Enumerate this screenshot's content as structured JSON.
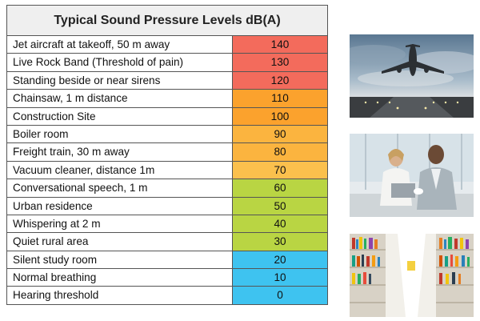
{
  "table": {
    "title": "Typical Sound Pressure Levels dB(A)",
    "rows": [
      {
        "label": "Jet aircraft at takeoff, 50 m away",
        "value": "140",
        "color": "#f36b5c"
      },
      {
        "label": "Live Rock Band (Threshold of pain)",
        "value": "130",
        "color": "#f36b5c"
      },
      {
        "label": "Standing beside or near sirens",
        "value": "120",
        "color": "#f36b5c"
      },
      {
        "label": "Chainsaw, 1 m distance",
        "value": "110",
        "color": "#fba22d"
      },
      {
        "label": "Construction Site",
        "value": "100",
        "color": "#fba22d"
      },
      {
        "label": "Boiler room",
        "value": "90",
        "color": "#fbb43f"
      },
      {
        "label": "Freight train, 30 m away",
        "value": "80",
        "color": "#fbb43f"
      },
      {
        "label": "Vacuum cleaner, distance 1m",
        "value": "70",
        "color": "#fbc04d"
      },
      {
        "label": "Conversational speech, 1 m",
        "value": "60",
        "color": "#b9d543"
      },
      {
        "label": "Urban residence",
        "value": "50",
        "color": "#b9d543"
      },
      {
        "label": "Whispering at 2 m",
        "value": "40",
        "color": "#b9d543"
      },
      {
        "label": "Quiet rural area",
        "value": "30",
        "color": "#b9d543"
      },
      {
        "label": "Silent study room",
        "value": "20",
        "color": "#3ec3f0"
      },
      {
        "label": "Normal breathing",
        "value": "10",
        "color": "#3ec3f0"
      },
      {
        "label": "Hearing threshold",
        "value": "0",
        "color": "#3ec3f0"
      }
    ]
  },
  "photos": [
    {
      "subject": "airplane-takeoff-photo"
    },
    {
      "subject": "office-conversation-photo"
    },
    {
      "subject": "library-bookshelves-photo"
    }
  ]
}
